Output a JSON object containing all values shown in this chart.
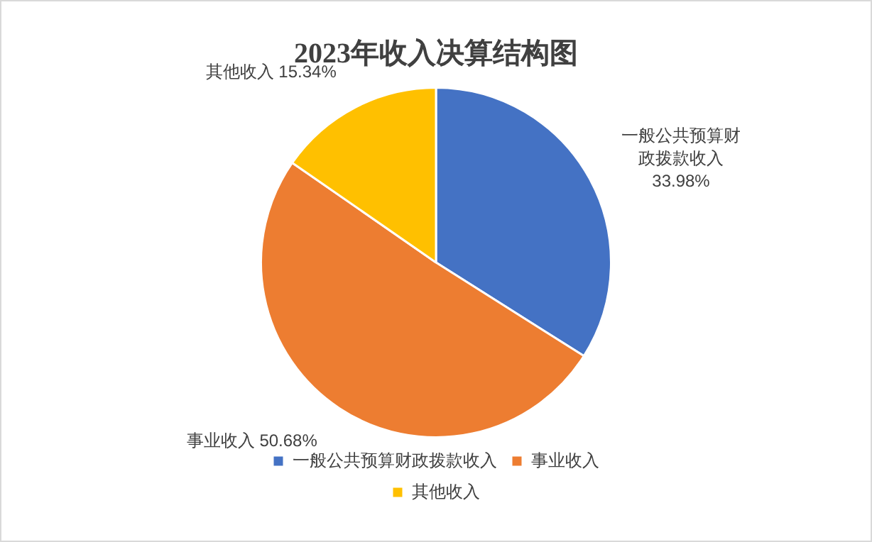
{
  "chart_data": {
    "type": "pie",
    "title": "2023年收入决算结构图",
    "categories": [
      "一般公共预算财政拨款收入",
      "事业收入",
      "其他收入"
    ],
    "values": [
      33.98,
      50.68,
      15.34
    ],
    "colors": [
      "#4472c4",
      "#ed7d31",
      "#ffc000"
    ],
    "value_labels": [
      "33.98%",
      "50.68%",
      "15.34%"
    ],
    "legend": "bottom"
  }
}
